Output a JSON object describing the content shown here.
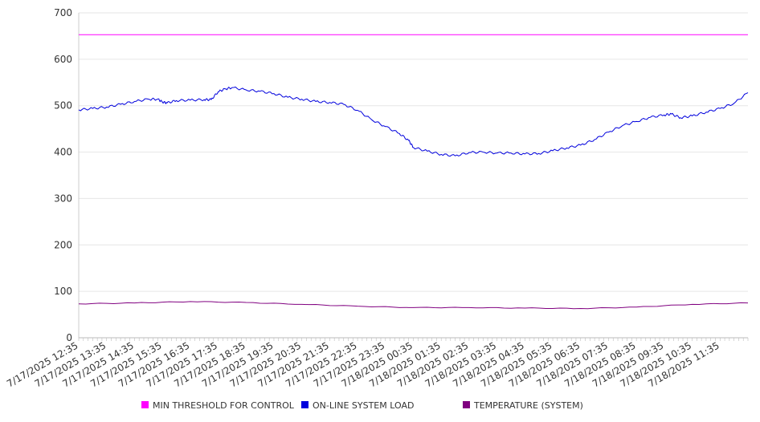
{
  "chart_data": {
    "type": "line",
    "title": "",
    "xlabel": "",
    "ylabel": "",
    "ylim": [
      0,
      700
    ],
    "yticks": [
      0,
      100,
      200,
      300,
      400,
      500,
      600,
      700
    ],
    "grid": true,
    "legend_position": "bottom",
    "x_tick_labels": [
      "7/17/2025 12:35",
      "7/17/2025 13:35",
      "7/17/2025 14:35",
      "7/17/2025 15:35",
      "7/17/2025 16:35",
      "7/17/2025 17:35",
      "7/17/2025 18:35",
      "7/17/2025 19:35",
      "7/17/2025 20:35",
      "7/17/2025 21:35",
      "7/17/2025 22:35",
      "7/17/2025 23:35",
      "7/18/2025 00:35",
      "7/18/2025 01:35",
      "7/18/2025 02:35",
      "7/18/2025 03:35",
      "7/18/2025 04:35",
      "7/18/2025 05:35",
      "7/18/2025 06:35",
      "7/18/2025 07:35",
      "7/18/2025 08:35",
      "7/18/2025 09:35",
      "7/18/2025 10:35",
      "7/18/2025 11:35"
    ],
    "x_start": "7/17/2025 12:35",
    "x_end": "7/18/2025 12:35",
    "series": [
      {
        "name": "MIN THRESHOLD FOR CONTROL",
        "color": "#ff00ff",
        "points": [
          {
            "x": "7/17/2025 12:35",
            "y": 653
          },
          {
            "x": "7/18/2025 12:35",
            "y": 653
          }
        ]
      },
      {
        "name": "ON-LINE SYSTEM LOAD",
        "color": "#0000dd",
        "points": [
          {
            "x": "7/17/2025 12:35",
            "y": 491
          },
          {
            "x": "7/17/2025 13:05",
            "y": 494
          },
          {
            "x": "7/17/2025 13:35",
            "y": 497
          },
          {
            "x": "7/17/2025 14:05",
            "y": 503
          },
          {
            "x": "7/17/2025 14:35",
            "y": 509
          },
          {
            "x": "7/17/2025 15:05",
            "y": 514
          },
          {
            "x": "7/17/2025 15:25",
            "y": 514
          },
          {
            "x": "7/17/2025 15:35",
            "y": 508
          },
          {
            "x": "7/17/2025 15:45",
            "y": 506
          },
          {
            "x": "7/17/2025 16:05",
            "y": 511
          },
          {
            "x": "7/17/2025 16:35",
            "y": 512
          },
          {
            "x": "7/17/2025 17:05",
            "y": 513
          },
          {
            "x": "7/17/2025 17:20",
            "y": 513
          },
          {
            "x": "7/17/2025 17:35",
            "y": 530
          },
          {
            "x": "7/17/2025 17:50",
            "y": 536
          },
          {
            "x": "7/17/2025 18:05",
            "y": 539
          },
          {
            "x": "7/17/2025 18:35",
            "y": 534
          },
          {
            "x": "7/17/2025 19:05",
            "y": 531
          },
          {
            "x": "7/17/2025 19:35",
            "y": 526
          },
          {
            "x": "7/17/2025 20:05",
            "y": 518
          },
          {
            "x": "7/17/2025 20:35",
            "y": 514
          },
          {
            "x": "7/17/2025 21:05",
            "y": 509
          },
          {
            "x": "7/17/2025 21:35",
            "y": 507
          },
          {
            "x": "7/17/2025 22:05",
            "y": 503
          },
          {
            "x": "7/17/2025 22:35",
            "y": 490
          },
          {
            "x": "7/17/2025 23:05",
            "y": 470
          },
          {
            "x": "7/17/2025 23:35",
            "y": 455
          },
          {
            "x": "7/18/2025 00:05",
            "y": 440
          },
          {
            "x": "7/18/2025 00:25",
            "y": 425
          },
          {
            "x": "7/18/2025 00:35",
            "y": 410
          },
          {
            "x": "7/18/2025 01:05",
            "y": 402
          },
          {
            "x": "7/18/2025 01:35",
            "y": 395
          },
          {
            "x": "7/18/2025 02:05",
            "y": 392
          },
          {
            "x": "7/18/2025 02:35",
            "y": 399
          },
          {
            "x": "7/18/2025 03:05",
            "y": 400
          },
          {
            "x": "7/18/2025 03:35",
            "y": 398
          },
          {
            "x": "7/18/2025 04:05",
            "y": 398
          },
          {
            "x": "7/18/2025 04:35",
            "y": 396
          },
          {
            "x": "7/18/2025 05:05",
            "y": 397
          },
          {
            "x": "7/18/2025 05:35",
            "y": 403
          },
          {
            "x": "7/18/2025 06:05",
            "y": 409
          },
          {
            "x": "7/18/2025 06:35",
            "y": 415
          },
          {
            "x": "7/18/2025 07:05",
            "y": 427
          },
          {
            "x": "7/18/2025 07:35",
            "y": 443
          },
          {
            "x": "7/18/2025 08:05",
            "y": 457
          },
          {
            "x": "7/18/2025 08:35",
            "y": 466
          },
          {
            "x": "7/18/2025 09:05",
            "y": 475
          },
          {
            "x": "7/18/2025 09:35",
            "y": 480
          },
          {
            "x": "7/18/2025 09:50",
            "y": 482
          },
          {
            "x": "7/18/2025 10:10",
            "y": 474
          },
          {
            "x": "7/18/2025 10:35",
            "y": 478
          },
          {
            "x": "7/18/2025 11:05",
            "y": 486
          },
          {
            "x": "7/18/2025 11:35",
            "y": 494
          },
          {
            "x": "7/18/2025 12:05",
            "y": 505
          },
          {
            "x": "7/18/2025 12:35",
            "y": 528
          }
        ]
      },
      {
        "name": "TEMPERATURE (SYSTEM)",
        "color": "#800080",
        "points": [
          {
            "x": "7/17/2025 12:35",
            "y": 73
          },
          {
            "x": "7/17/2025 14:35",
            "y": 75
          },
          {
            "x": "7/17/2025 16:35",
            "y": 78
          },
          {
            "x": "7/17/2025 18:35",
            "y": 76
          },
          {
            "x": "7/17/2025 20:35",
            "y": 72
          },
          {
            "x": "7/17/2025 22:35",
            "y": 68
          },
          {
            "x": "7/18/2025 00:35",
            "y": 65
          },
          {
            "x": "7/18/2025 02:35",
            "y": 65
          },
          {
            "x": "7/18/2025 04:35",
            "y": 64
          },
          {
            "x": "7/18/2025 06:35",
            "y": 63
          },
          {
            "x": "7/18/2025 08:35",
            "y": 66
          },
          {
            "x": "7/18/2025 10:35",
            "y": 72
          },
          {
            "x": "7/18/2025 12:35",
            "y": 75
          }
        ]
      }
    ]
  }
}
